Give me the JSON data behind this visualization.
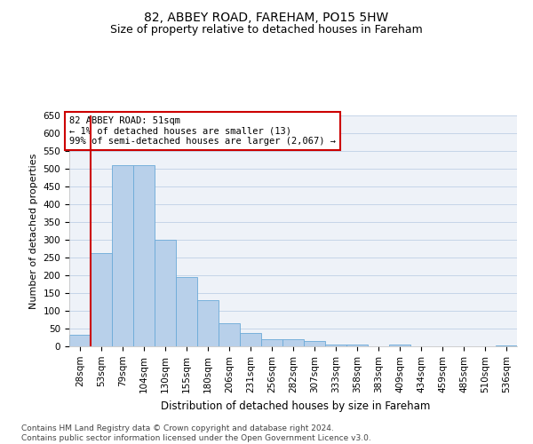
{
  "title": "82, ABBEY ROAD, FAREHAM, PO15 5HW",
  "subtitle": "Size of property relative to detached houses in Fareham",
  "xlabel": "Distribution of detached houses by size in Fareham",
  "ylabel": "Number of detached properties",
  "categories": [
    "28sqm",
    "53sqm",
    "79sqm",
    "104sqm",
    "130sqm",
    "155sqm",
    "180sqm",
    "206sqm",
    "231sqm",
    "256sqm",
    "282sqm",
    "307sqm",
    "333sqm",
    "358sqm",
    "383sqm",
    "409sqm",
    "434sqm",
    "459sqm",
    "485sqm",
    "510sqm",
    "536sqm"
  ],
  "values": [
    32,
    263,
    510,
    510,
    300,
    196,
    130,
    65,
    38,
    20,
    20,
    14,
    6,
    6,
    0,
    4,
    0,
    0,
    0,
    0,
    2
  ],
  "bar_color": "#b8d0ea",
  "bar_edge_color": "#6baad8",
  "annotation_text": "82 ABBEY ROAD: 51sqm\n← 1% of detached houses are smaller (13)\n99% of semi-detached houses are larger (2,067) →",
  "annotation_box_facecolor": "white",
  "annotation_box_edgecolor": "#cc0000",
  "vline_color": "#cc0000",
  "ylim": [
    0,
    650
  ],
  "yticks": [
    0,
    50,
    100,
    150,
    200,
    250,
    300,
    350,
    400,
    450,
    500,
    550,
    600,
    650
  ],
  "footer": "Contains HM Land Registry data © Crown copyright and database right 2024.\nContains public sector information licensed under the Open Government Licence v3.0.",
  "bg_color": "#eef2f8",
  "grid_color": "#c5d5e8",
  "title_fontsize": 10,
  "subtitle_fontsize": 9,
  "xlabel_fontsize": 8.5,
  "ylabel_fontsize": 8,
  "tick_fontsize": 7.5,
  "annotation_fontsize": 7.5,
  "footer_fontsize": 6.5
}
